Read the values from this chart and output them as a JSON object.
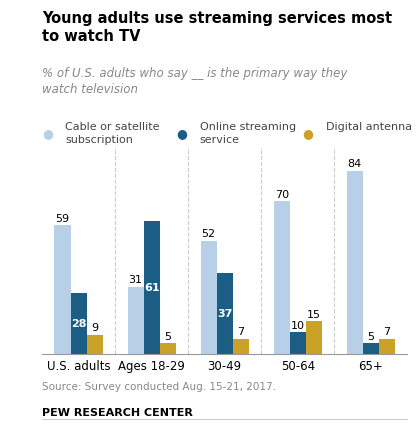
{
  "title": "Young adults use streaming services most\nto watch TV",
  "subtitle": "% of U.S. adults who say __ is the primary way they\nwatch television",
  "categories": [
    "U.S. adults",
    "Ages 18-29",
    "30-49",
    "50-64",
    "65+"
  ],
  "cable": [
    59,
    31,
    52,
    70,
    84
  ],
  "streaming": [
    28,
    61,
    37,
    10,
    5
  ],
  "antenna": [
    9,
    5,
    7,
    15,
    7
  ],
  "cable_color": "#b8cfe8",
  "streaming_color": "#1b5d85",
  "antenna_color": "#c9a227",
  "source": "Source: Survey conducted Aug. 15-21, 2017.",
  "footer": "PEW RESEARCH CENTER",
  "legend_labels": [
    "Cable or satellite\nsubscription",
    "Online streaming\nservice",
    "Digital antenna"
  ],
  "bar_width": 0.22,
  "ylim": 95
}
